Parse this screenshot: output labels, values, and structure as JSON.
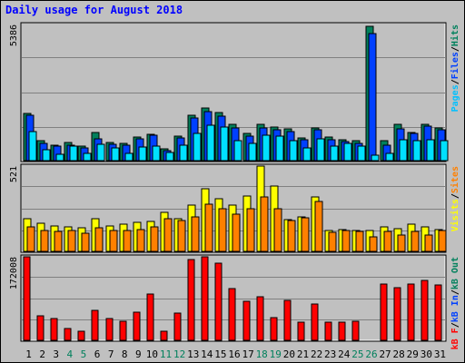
{
  "title": "Daily usage for August 2018",
  "colors": {
    "background": "#c0c0c0",
    "hits": "#00805c",
    "files": "#0040ff",
    "pages": "#00e0ff",
    "visits": "#ffff00",
    "sites": "#ff8000",
    "kbytes": "#ff0000",
    "title": "#0000ff",
    "weekend_day": "#00805c",
    "weekday": "#000000"
  },
  "legend": {
    "top": [
      {
        "text": "Pages",
        "color": "#00c0ff"
      },
      {
        "text": "/",
        "color": "#000000"
      },
      {
        "text": "Files",
        "color": "#0040ff"
      },
      {
        "text": "/",
        "color": "#000000"
      },
      {
        "text": "Hits",
        "color": "#00805c"
      }
    ],
    "middle": [
      {
        "text": "Visits",
        "color": "#ffff00"
      },
      {
        "text": "/",
        "color": "#000000"
      },
      {
        "text": "Sites",
        "color": "#ff8000"
      }
    ],
    "bottom": [
      {
        "text": "kB F",
        "color": "#ff0000"
      },
      {
        "text": "/",
        "color": "#000000"
      },
      {
        "text": "kB In",
        "color": "#0040ff"
      },
      {
        "text": "/",
        "color": "#000000"
      },
      {
        "text": "kB Out",
        "color": "#00805c"
      }
    ]
  },
  "chart_data": [
    {
      "type": "bar",
      "panel": "hits-files-pages",
      "ymax": 5386,
      "ymax_label": "5386",
      "categories": [
        "1",
        "2",
        "3",
        "4",
        "5",
        "6",
        "7",
        "8",
        "9",
        "10",
        "11",
        "12",
        "13",
        "14",
        "15",
        "16",
        "17",
        "18",
        "19",
        "20",
        "21",
        "22",
        "23",
        "24",
        "25",
        "26",
        "27",
        "28",
        "29",
        "30",
        "31"
      ],
      "series": [
        {
          "name": "Hits",
          "color": "#00805c",
          "values": [
            1850,
            780,
            620,
            720,
            580,
            1130,
            720,
            670,
            920,
            1050,
            450,
            960,
            1800,
            2090,
            1900,
            1420,
            1060,
            1420,
            1320,
            1260,
            890,
            1280,
            920,
            840,
            780,
            5300,
            780,
            1430,
            1130,
            1450,
            1300
          ]
        },
        {
          "name": "Files",
          "color": "#0040ff",
          "values": [
            1790,
            700,
            560,
            620,
            500,
            860,
            660,
            600,
            850,
            990,
            390,
            880,
            1680,
            1950,
            1770,
            1280,
            980,
            1310,
            1230,
            1160,
            830,
            1210,
            840,
            760,
            690,
            5020,
            610,
            1260,
            1070,
            1380,
            1220
          ]
        },
        {
          "name": "Pages",
          "color": "#00e0ff",
          "values": [
            1150,
            430,
            250,
            560,
            300,
            660,
            510,
            290,
            550,
            560,
            310,
            600,
            1080,
            1390,
            1320,
            780,
            700,
            990,
            960,
            780,
            500,
            860,
            560,
            690,
            560,
            220,
            300,
            820,
            800,
            830,
            800
          ]
        }
      ]
    },
    {
      "type": "bar",
      "panel": "visits-sites",
      "ymax": 521,
      "ymax_label": "521",
      "categories": [
        "1",
        "2",
        "3",
        "4",
        "5",
        "6",
        "7",
        "8",
        "9",
        "10",
        "11",
        "12",
        "13",
        "14",
        "15",
        "16",
        "17",
        "18",
        "19",
        "20",
        "21",
        "22",
        "23",
        "24",
        "25",
        "26",
        "27",
        "28",
        "29",
        "30",
        "31"
      ],
      "series": [
        {
          "name": "Visits",
          "color": "#ffff00",
          "values": [
            200,
            170,
            155,
            150,
            145,
            200,
            155,
            165,
            175,
            185,
            240,
            200,
            280,
            380,
            320,
            280,
            340,
            520,
            400,
            195,
            210,
            335,
            130,
            135,
            130,
            130,
            150,
            140,
            165,
            150,
            135
          ]
        },
        {
          "name": "Sites",
          "color": "#ff8000",
          "values": [
            150,
            130,
            120,
            125,
            110,
            145,
            125,
            125,
            135,
            150,
            200,
            190,
            210,
            290,
            260,
            230,
            260,
            330,
            260,
            190,
            205,
            305,
            115,
            125,
            120,
            90,
            120,
            100,
            120,
            100,
            125
          ]
        }
      ]
    },
    {
      "type": "bar",
      "panel": "kbytes",
      "ymax": 172008,
      "ymax_label": "172008",
      "categories": [
        "1",
        "2",
        "3",
        "4",
        "5",
        "6",
        "7",
        "8",
        "9",
        "10",
        "11",
        "12",
        "13",
        "14",
        "15",
        "16",
        "17",
        "18",
        "19",
        "20",
        "21",
        "22",
        "23",
        "24",
        "25",
        "26",
        "27",
        "28",
        "29",
        "30",
        "31"
      ],
      "series": [
        {
          "name": "kB F",
          "color": "#ff0000",
          "values": [
            172000,
            50000,
            45000,
            25000,
            19000,
            61000,
            44000,
            39000,
            58000,
            96000,
            19000,
            57000,
            167000,
            172000,
            158000,
            107000,
            80000,
            89000,
            47000,
            83000,
            37000,
            74000,
            37000,
            37000,
            40000,
            0,
            115000,
            108000,
            116000,
            124000,
            114000
          ]
        }
      ]
    }
  ],
  "weekend_days": [
    "4",
    "5",
    "11",
    "12",
    "18",
    "19",
    "25",
    "26"
  ]
}
